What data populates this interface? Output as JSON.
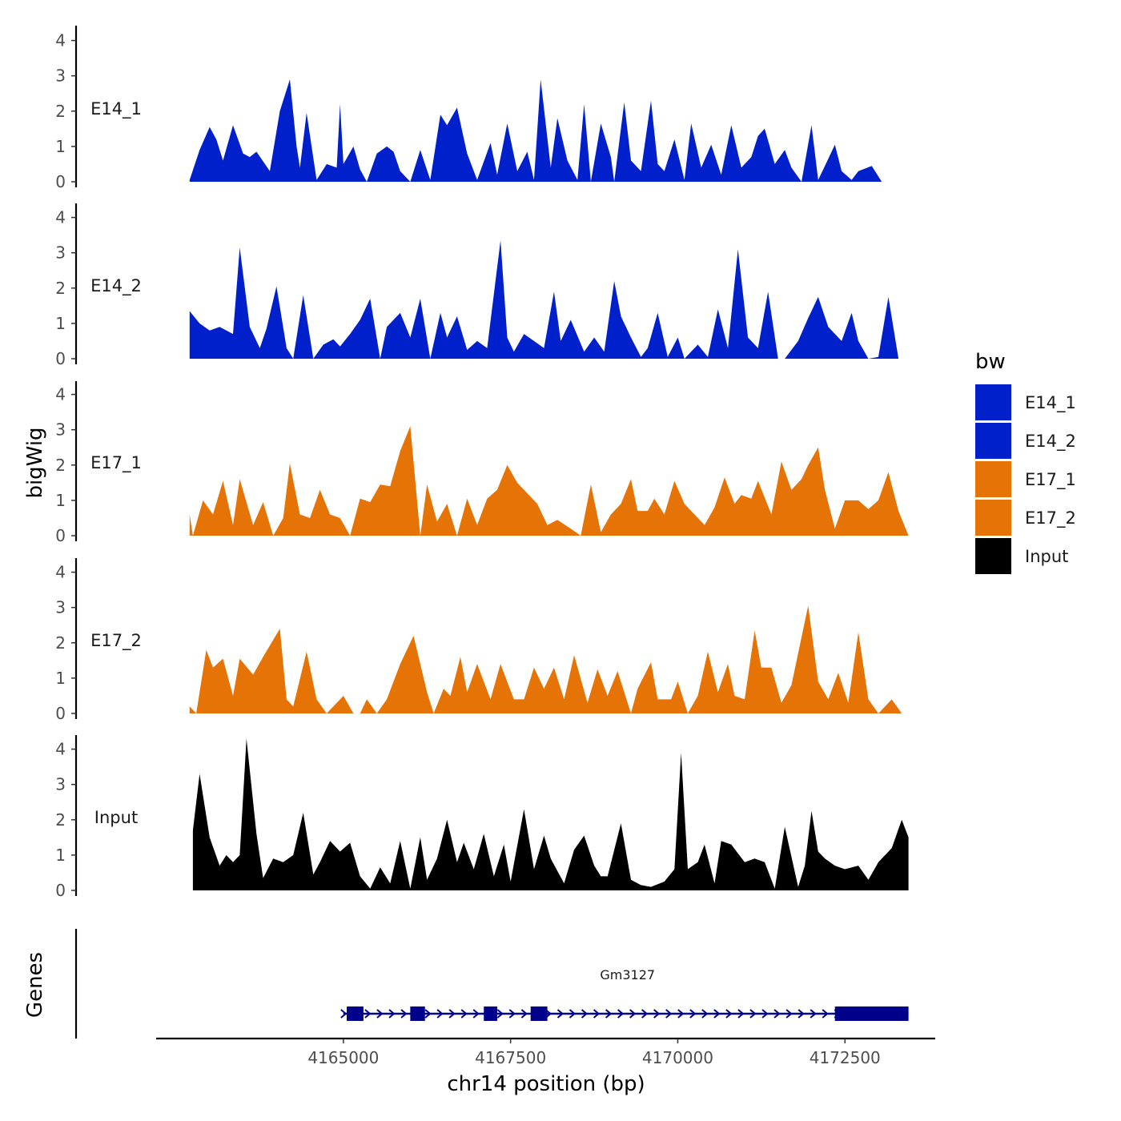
{
  "chart_data": {
    "type": "area",
    "title": "",
    "xlabel": "chr14 position (bp)",
    "ylabel": "bigWig",
    "genes_panel_label": "Genes",
    "xlim": [
      4162200,
      4173850
    ],
    "x_ticks": [
      4165000,
      4167500,
      4170000,
      4172500
    ],
    "x_tick_labels": [
      "4165000",
      "4167500",
      "4170000",
      "4172500"
    ],
    "ylim": [
      0,
      4.5
    ],
    "y_ticks": [
      0,
      1,
      2,
      3,
      4
    ],
    "y_tick_labels": [
      "0",
      "1",
      "2",
      "3",
      "4"
    ],
    "colors": {
      "E14_1": "#0020cc",
      "E14_2": "#0020cc",
      "E17_1": "#e67305",
      "E17_2": "#e67305",
      "Input": "#000000",
      "gene": "#00008b"
    },
    "series": [
      {
        "name": "E14_1",
        "x": [
          4162700,
          4162850,
          4163000,
          4163100,
          4163200,
          4163350,
          4163500,
          4163600,
          4163700,
          4163900,
          4164050,
          4164200,
          4164300,
          4164350,
          4164450,
          4164600,
          4164750,
          4164900,
          4164950,
          4165000,
          4165150,
          4165250,
          4165350,
          4165500,
          4165650,
          4165750,
          4165850,
          4166000,
          4166150,
          4166300,
          4166450,
          4166550,
          4166700,
          4166850,
          4167000,
          4167200,
          4167300,
          4167450,
          4167600,
          4167750,
          4167850,
          4167950,
          4168100,
          4168200,
          4168350,
          4168500,
          4168600,
          4168700,
          4168850,
          4169000,
          4169050,
          4169200,
          4169300,
          4169450,
          4169600,
          4169700,
          4169800,
          4169950,
          4170100,
          4170200,
          4170350,
          4170500,
          4170650,
          4170800,
          4170950,
          4171100,
          4171200,
          4171300,
          4171450,
          4171600,
          4171700,
          4171850,
          4172000,
          4172100,
          4172200,
          4172350,
          4172450,
          4172600,
          4172700,
          4172900,
          4173050,
          4173200,
          4173300,
          4173450
        ],
        "values": [
          0.05,
          0.9,
          1.55,
          1.2,
          0.6,
          1.6,
          0.8,
          0.7,
          0.85,
          0.3,
          2.0,
          2.9,
          1.0,
          0.4,
          1.95,
          0.05,
          0.5,
          0.4,
          2.2,
          0.5,
          1.0,
          0.35,
          0.0,
          0.8,
          1.0,
          0.85,
          0.3,
          0.0,
          0.9,
          0.05,
          1.9,
          1.6,
          2.1,
          0.8,
          0.05,
          1.1,
          0.2,
          1.65,
          0.3,
          0.85,
          0.05,
          2.9,
          0.4,
          1.8,
          0.6,
          0.05,
          2.2,
          0.0,
          1.65,
          0.7,
          0.0,
          2.25,
          0.6,
          0.3,
          2.3,
          0.5,
          0.3,
          1.2,
          0.05,
          1.65,
          0.4,
          1.05,
          0.2,
          1.6,
          0.4,
          0.7,
          1.3,
          1.5,
          0.5,
          0.9,
          0.4,
          0.0,
          1.6,
          0.05,
          0.45,
          1.05,
          0.3,
          0.05,
          0.3,
          0.45,
          0.0,
          0.0,
          0.0,
          0.0
        ]
      },
      {
        "name": "E14_2",
        "x": [
          4162700,
          4162850,
          4163000,
          4163150,
          4163350,
          4163450,
          4163600,
          4163750,
          4163850,
          4164000,
          4164150,
          4164250,
          4164400,
          4164550,
          4164700,
          4164850,
          4164950,
          4165100,
          4165250,
          4165400,
          4165550,
          4165650,
          4165850,
          4166000,
          4166150,
          4166300,
          4166450,
          4166550,
          4166700,
          4166850,
          4167000,
          4167150,
          4167350,
          4167450,
          4167550,
          4167700,
          4167850,
          4168000,
          4168150,
          4168250,
          4168400,
          4168600,
          4168750,
          4168900,
          4169050,
          4169150,
          4169300,
          4169450,
          4169550,
          4169700,
          4169850,
          4170000,
          4170100,
          4170300,
          4170450,
          4170600,
          4170750,
          4170900,
          4171050,
          4171200,
          4171350,
          4171500,
          4171600,
          4171800,
          4171950,
          4172100,
          4172250,
          4172450,
          4172600,
          4172700,
          4172850,
          4173000,
          4173150,
          4173300,
          4173450
        ],
        "values": [
          1.35,
          1.0,
          0.8,
          0.9,
          0.7,
          3.15,
          0.9,
          0.3,
          0.85,
          2.05,
          0.3,
          0.0,
          1.8,
          0.0,
          0.4,
          0.55,
          0.35,
          0.7,
          1.1,
          1.7,
          0.0,
          0.9,
          1.3,
          0.6,
          1.7,
          0.0,
          1.3,
          0.6,
          1.2,
          0.25,
          0.5,
          0.3,
          3.35,
          0.6,
          0.2,
          0.7,
          0.5,
          0.3,
          1.9,
          0.5,
          1.1,
          0.2,
          0.6,
          0.2,
          2.2,
          1.2,
          0.6,
          0.05,
          0.3,
          1.3,
          0.05,
          0.6,
          0.0,
          0.4,
          0.05,
          1.4,
          0.3,
          3.1,
          0.6,
          0.3,
          1.9,
          0.0,
          0.0,
          0.5,
          1.15,
          1.75,
          0.9,
          0.5,
          1.3,
          0.5,
          0.0,
          0.05,
          1.75,
          0.0,
          0.0
        ]
      },
      {
        "name": "E17_1",
        "x": [
          4162700,
          4162750,
          4162900,
          4163050,
          4163200,
          4163350,
          4163450,
          4163650,
          4163800,
          4163950,
          4164100,
          4164200,
          4164350,
          4164500,
          4164650,
          4164800,
          4164950,
          4165100,
          4165250,
          4165400,
          4165550,
          4165700,
          4165850,
          4166000,
          4166150,
          4166250,
          4166400,
          4166550,
          4166700,
          4166850,
          4167000,
          4167150,
          4167300,
          4167450,
          4167600,
          4167750,
          4167900,
          4168050,
          4168200,
          4168400,
          4168550,
          4168700,
          4168850,
          4169000,
          4169150,
          4169300,
          4169400,
          4169550,
          4169650,
          4169800,
          4169950,
          4170100,
          4170250,
          4170400,
          4170550,
          4170700,
          4170850,
          4170950,
          4171100,
          4171200,
          4171400,
          4171550,
          4171700,
          4171850,
          4171950,
          4172100,
          4172200,
          4172350,
          4172500,
          4172700,
          4172850,
          4173000,
          4173150,
          4173300,
          4173450
        ],
        "values": [
          0.6,
          0.0,
          1.0,
          0.6,
          1.55,
          0.3,
          1.6,
          0.3,
          0.95,
          0.0,
          0.5,
          2.05,
          0.6,
          0.5,
          1.3,
          0.6,
          0.5,
          0.0,
          1.05,
          0.95,
          1.45,
          1.4,
          2.4,
          3.1,
          0.0,
          1.45,
          0.4,
          0.9,
          0.0,
          1.05,
          0.3,
          1.05,
          1.3,
          2.0,
          1.5,
          1.2,
          0.9,
          0.3,
          0.45,
          0.2,
          0.0,
          1.45,
          0.1,
          0.6,
          0.9,
          1.6,
          0.7,
          0.7,
          1.05,
          0.6,
          1.55,
          0.9,
          0.6,
          0.3,
          0.8,
          1.65,
          0.9,
          1.15,
          1.05,
          1.55,
          0.6,
          2.1,
          1.3,
          1.6,
          2.0,
          2.5,
          1.3,
          0.2,
          1.0,
          1.0,
          0.75,
          1.0,
          1.8,
          0.7,
          0.0
        ]
      },
      {
        "name": "E17_2",
        "x": [
          4162700,
          4162800,
          4162950,
          4163050,
          4163200,
          4163350,
          4163450,
          4163650,
          4163800,
          4164050,
          4164150,
          4164250,
          4164450,
          4164600,
          4164750,
          4165000,
          4165150,
          4165250,
          4165350,
          4165500,
          4165650,
          4165850,
          4166050,
          4166250,
          4166350,
          4166500,
          4166600,
          4166750,
          4166850,
          4167000,
          4167200,
          4167350,
          4167550,
          4167700,
          4167850,
          4168000,
          4168150,
          4168300,
          4168450,
          4168650,
          4168800,
          4168950,
          4169100,
          4169300,
          4169400,
          4169600,
          4169700,
          4169900,
          4170000,
          4170150,
          4170300,
          4170450,
          4170600,
          4170750,
          4170850,
          4171000,
          4171150,
          4171250,
          4171400,
          4171550,
          4171700,
          4171950,
          4172100,
          4172250,
          4172400,
          4172550,
          4172700,
          4172850,
          4173000,
          4173200,
          4173350,
          4173450
        ],
        "values": [
          0.2,
          0.0,
          1.8,
          1.3,
          1.55,
          0.5,
          1.55,
          1.1,
          1.6,
          2.4,
          0.4,
          0.2,
          1.75,
          0.4,
          0.0,
          0.5,
          0.0,
          0.0,
          0.4,
          0.0,
          0.4,
          1.4,
          2.2,
          0.6,
          0.0,
          0.7,
          0.5,
          1.6,
          0.6,
          1.4,
          0.4,
          1.4,
          0.4,
          0.4,
          1.3,
          0.7,
          1.3,
          0.4,
          1.65,
          0.3,
          1.25,
          0.5,
          1.2,
          0.0,
          0.7,
          1.45,
          0.4,
          0.4,
          0.9,
          0.0,
          0.5,
          1.75,
          0.6,
          1.4,
          0.5,
          0.4,
          2.35,
          1.3,
          1.3,
          0.3,
          0.8,
          3.05,
          0.9,
          0.4,
          1.15,
          0.3,
          2.3,
          0.4,
          0.0,
          0.4,
          0.0,
          0.0
        ]
      },
      {
        "name": "Input",
        "x": [
          4162750,
          4162850,
          4163000,
          4163150,
          4163250,
          4163350,
          4163450,
          4163550,
          4163700,
          4163800,
          4163950,
          4164100,
          4164250,
          4164400,
          4164550,
          4164650,
          4164800,
          4164950,
          4165100,
          4165250,
          4165400,
          4165550,
          4165700,
          4165850,
          4166000,
          4166150,
          4166250,
          4166400,
          4166550,
          4166700,
          4166800,
          4166950,
          4167100,
          4167250,
          4167400,
          4167500,
          4167700,
          4167850,
          4168000,
          4168100,
          4168300,
          4168450,
          4168600,
          4168750,
          4168850,
          4168950,
          4169150,
          4169300,
          4169450,
          4169600,
          4169800,
          4169950,
          4170050,
          4170150,
          4170300,
          4170400,
          4170550,
          4170650,
          4170800,
          4171000,
          4171150,
          4171300,
          4171450,
          4171600,
          4171800,
          4171900,
          4172000,
          4172100,
          4172200,
          4172350,
          4172500,
          4172700,
          4172850,
          4173000,
          4173200,
          4173350,
          4173450
        ],
        "values": [
          1.7,
          3.3,
          1.5,
          0.7,
          1.0,
          0.8,
          1.0,
          4.3,
          1.6,
          0.35,
          0.9,
          0.8,
          1.0,
          2.2,
          0.45,
          0.8,
          1.4,
          1.1,
          1.35,
          0.4,
          0.05,
          0.65,
          0.2,
          1.4,
          0.05,
          1.5,
          0.3,
          0.9,
          2.0,
          0.8,
          1.35,
          0.6,
          1.6,
          0.4,
          1.3,
          0.25,
          2.3,
          0.6,
          1.55,
          0.9,
          0.2,
          1.15,
          1.55,
          0.7,
          0.4,
          0.4,
          1.9,
          0.3,
          0.15,
          0.1,
          0.25,
          0.6,
          3.9,
          0.6,
          0.8,
          1.3,
          0.2,
          1.4,
          1.3,
          0.8,
          0.9,
          0.8,
          0.05,
          1.8,
          0.1,
          0.7,
          2.25,
          1.1,
          0.9,
          0.7,
          0.6,
          0.7,
          0.3,
          0.8,
          1.2,
          2.0,
          1.5
        ]
      }
    ],
    "gene": {
      "name": "Gm3127",
      "start": 4165000,
      "end": 4173450,
      "strand": "+",
      "exons": [
        [
          4165050,
          4165300
        ],
        [
          4166000,
          4166220
        ],
        [
          4167100,
          4167300
        ],
        [
          4167800,
          4168050
        ],
        [
          4172350,
          4173450
        ]
      ]
    },
    "legend": {
      "title": "bw",
      "position": "right",
      "entries": [
        "E14_1",
        "E14_2",
        "E17_1",
        "E17_2",
        "Input"
      ]
    }
  }
}
